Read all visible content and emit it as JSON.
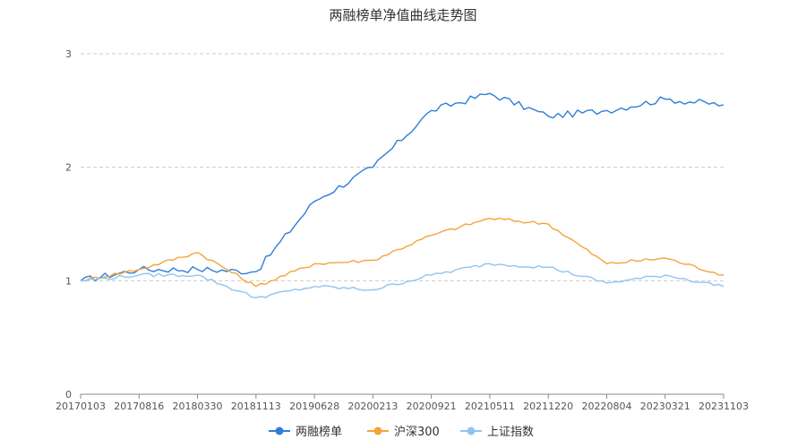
{
  "chart_data": {
    "type": "line",
    "title": "两融榜单净值曲线走势图",
    "xlabel": "",
    "ylabel": "",
    "x": [
      "20170103",
      "20170816",
      "20180330",
      "20181113",
      "20190628",
      "20200213",
      "20200921",
      "20210511",
      "20211220",
      "20220804",
      "20230321",
      "20231103"
    ],
    "ylim": [
      0,
      3
    ],
    "yticks": [
      0,
      1,
      2,
      3
    ],
    "grid": true,
    "legend_position": "bottom",
    "series": [
      {
        "name": "两融榜单",
        "color": "#2f7ed8",
        "values": [
          1.0,
          1.1,
          1.1,
          1.08,
          1.7,
          2.0,
          2.5,
          2.65,
          2.45,
          2.5,
          2.6,
          2.55
        ]
      },
      {
        "name": "沪深300",
        "color": "#f3a43b",
        "values": [
          1.0,
          1.1,
          1.25,
          0.95,
          1.15,
          1.18,
          1.4,
          1.55,
          1.5,
          1.15,
          1.2,
          1.05
        ]
      },
      {
        "name": "上证指数",
        "color": "#90c4f0",
        "values": [
          1.0,
          1.05,
          1.05,
          0.85,
          0.95,
          0.92,
          1.05,
          1.15,
          1.12,
          0.98,
          1.05,
          0.95
        ]
      }
    ]
  }
}
